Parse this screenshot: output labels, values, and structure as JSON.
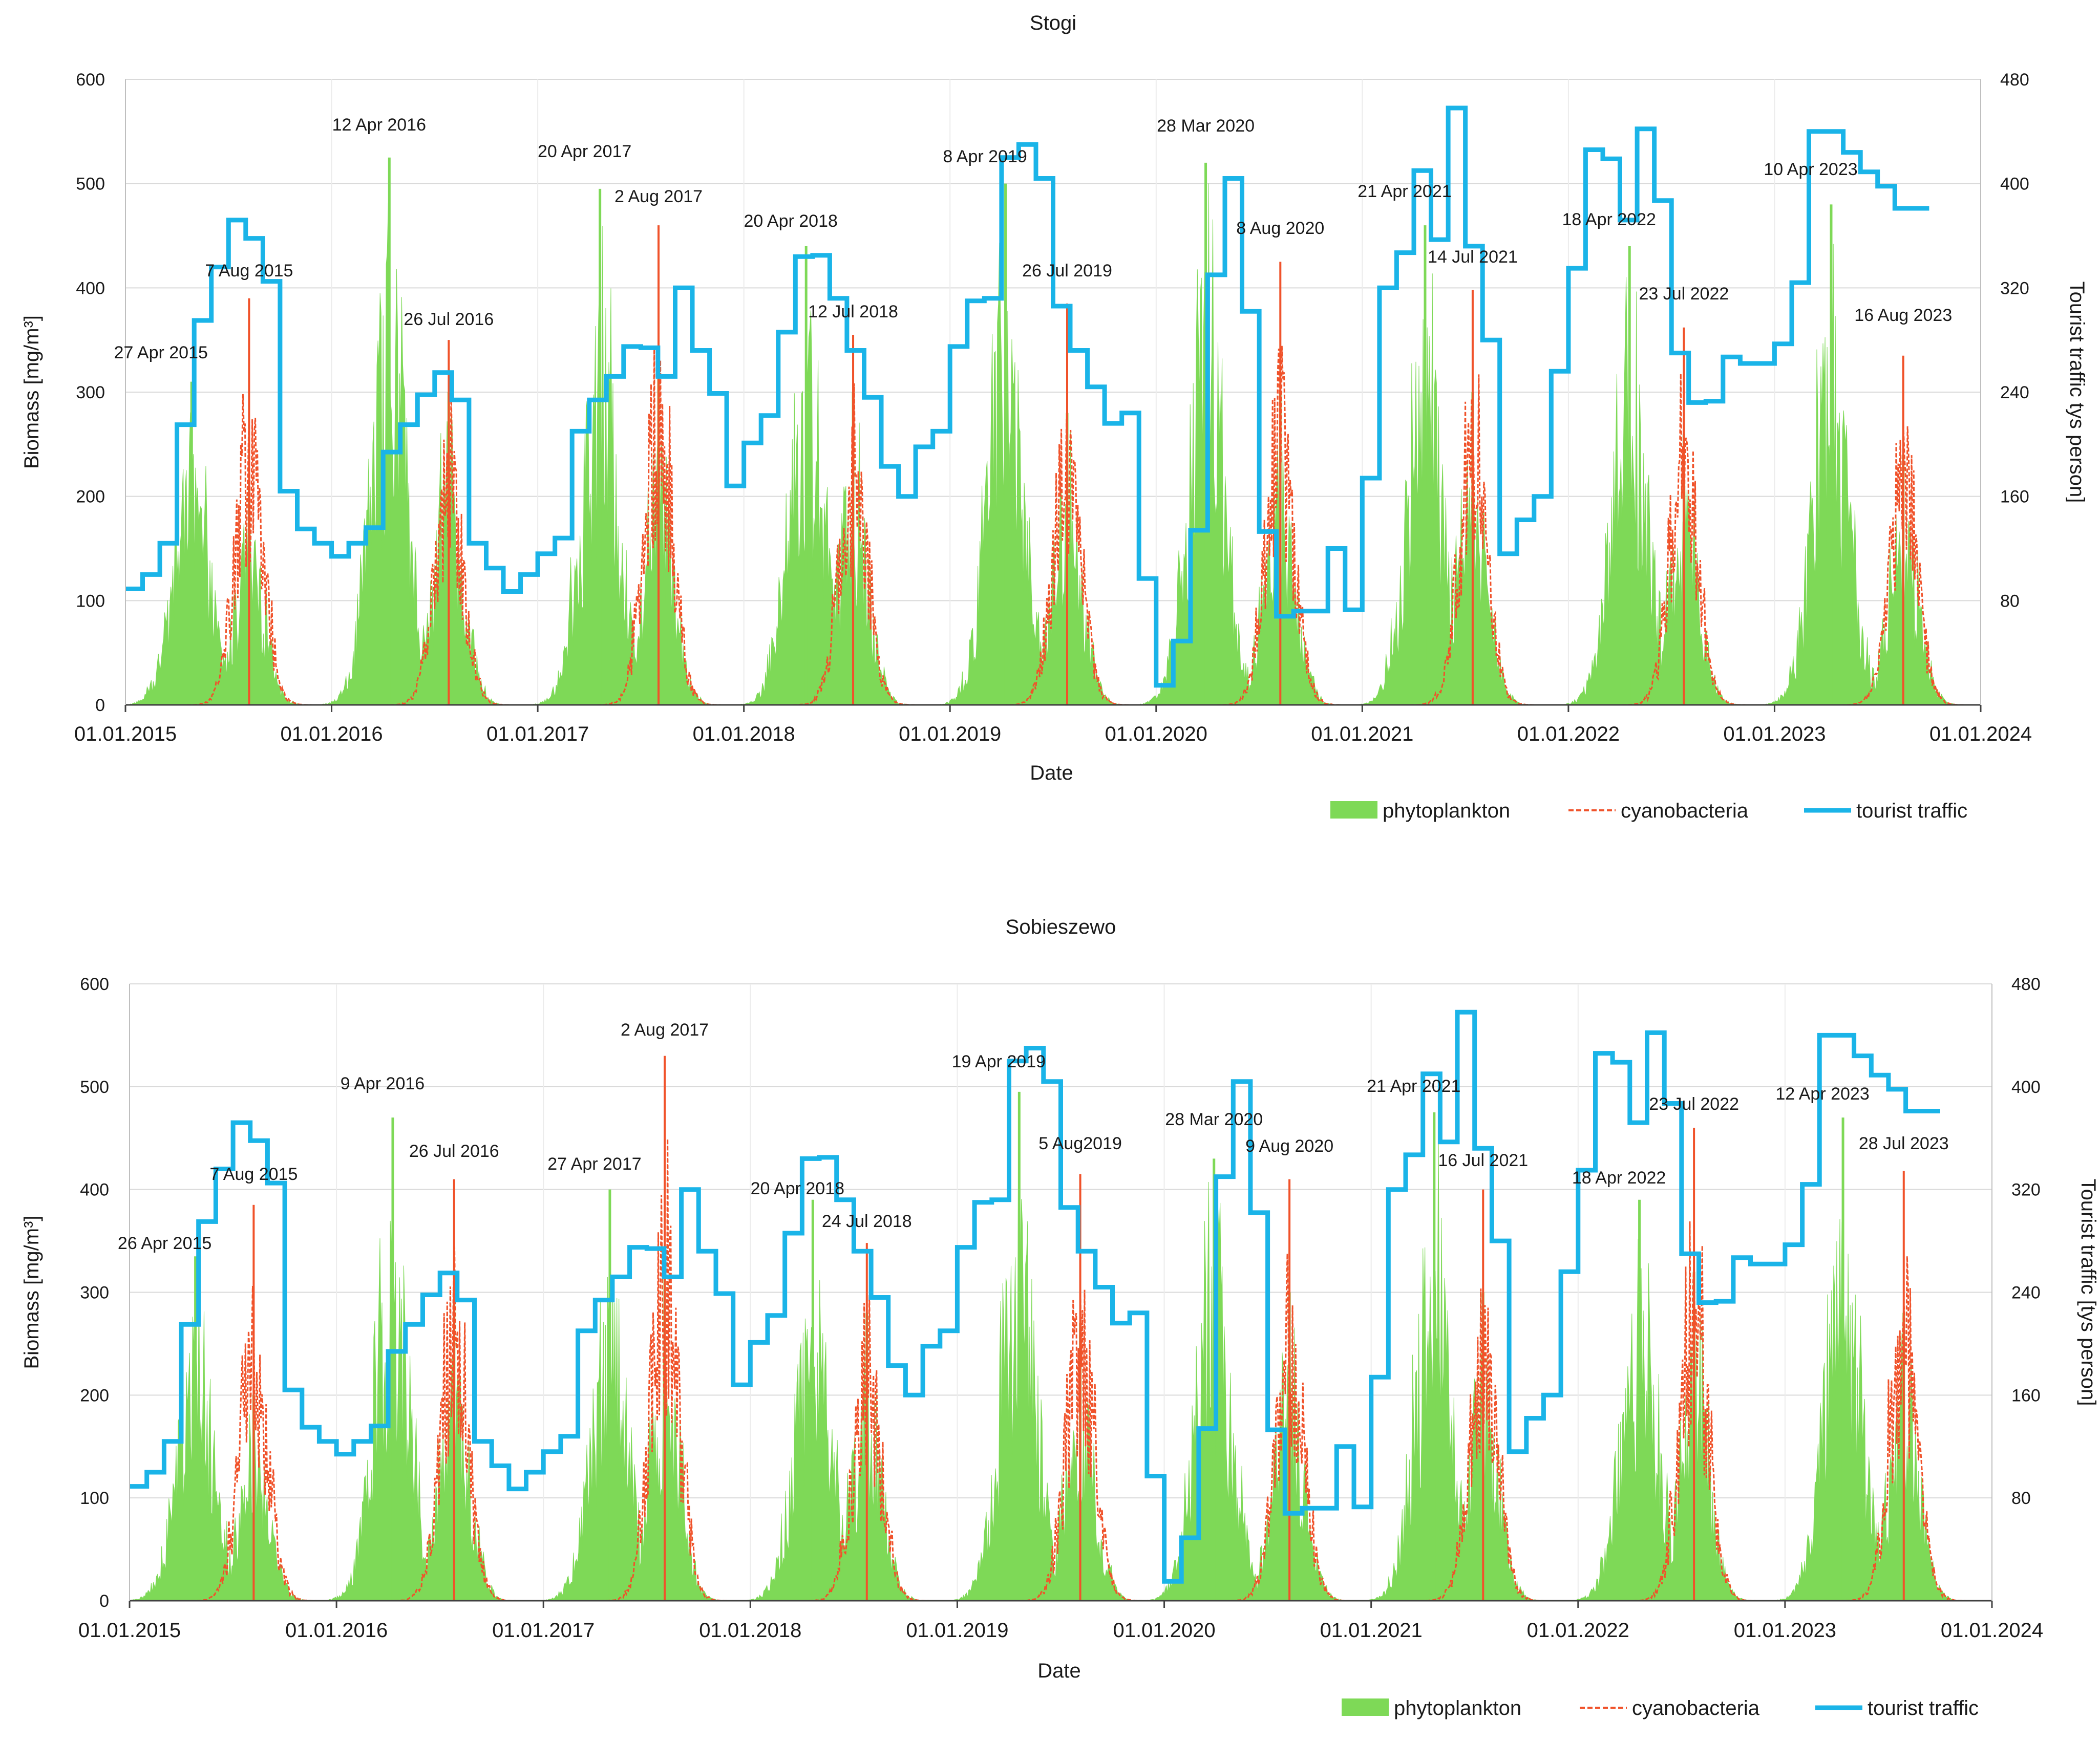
{
  "chart_data": [
    {
      "type": "area",
      "title": "Stogi",
      "xlabel": "Date",
      "ylabel": "Biomass  [mg/m³]",
      "y2label": "Tourist traffic  tys person]",
      "ylim": [
        0,
        600
      ],
      "y2lim": [
        0,
        480
      ],
      "y_ticks": [
        "0",
        "100",
        "200",
        "300",
        "400",
        "500",
        "600"
      ],
      "y2_ticks": [
        "80",
        "160",
        "240",
        "320",
        "400",
        "480"
      ],
      "x_ticks": [
        "01.01.2015",
        "01.01.2016",
        "01.01.2017",
        "01.01.2018",
        "01.01.2019",
        "01.01.2020",
        "01.01.2021",
        "01.01.2022",
        "01.01.2023",
        "01.01.2024"
      ],
      "grid": "horizontal",
      "legend": "bottom-right",
      "series": [
        {
          "name": "phytoplankton",
          "kind": "area",
          "color": "#7ED957",
          "peaks": [
            {
              "date": "2015-04-27",
              "value": 310
            },
            {
              "date": "2015-08-07",
              "value": 210
            },
            {
              "date": "2016-04-12",
              "value": 525
            },
            {
              "date": "2016-07-26",
              "value": 300
            },
            {
              "date": "2017-04-20",
              "value": 495
            },
            {
              "date": "2017-08-02",
              "value": 330
            },
            {
              "date": "2018-04-20",
              "value": 440
            },
            {
              "date": "2018-07-12",
              "value": 300
            },
            {
              "date": "2019-04-08",
              "value": 500
            },
            {
              "date": "2019-07-26",
              "value": 280
            },
            {
              "date": "2020-03-28",
              "value": 520
            },
            {
              "date": "2020-08-08",
              "value": 300
            },
            {
              "date": "2021-04-21",
              "value": 460
            },
            {
              "date": "2021-07-14",
              "value": 300
            },
            {
              "date": "2022-04-18",
              "value": 440
            },
            {
              "date": "2022-07-23",
              "value": 260
            },
            {
              "date": "2023-04-10",
              "value": 480
            },
            {
              "date": "2023-08-16",
              "value": 240
            }
          ]
        },
        {
          "name": "cyanobacteria",
          "kind": "dashed-line",
          "color": "#F0522A",
          "peaks": [
            {
              "date": "2015-08-07",
              "value": 390
            },
            {
              "date": "2016-07-26",
              "value": 350
            },
            {
              "date": "2017-08-02",
              "value": 460
            },
            {
              "date": "2018-07-12",
              "value": 355
            },
            {
              "date": "2019-07-26",
              "value": 385
            },
            {
              "date": "2020-08-08",
              "value": 425
            },
            {
              "date": "2021-07-14",
              "value": 398
            },
            {
              "date": "2022-07-23",
              "value": 362
            },
            {
              "date": "2023-08-16",
              "value": 335
            }
          ]
        },
        {
          "name": "tourist traffic",
          "kind": "step",
          "axis": "right",
          "color": "#1AB4E8",
          "monthly": [
            89,
            100,
            124,
            215,
            295,
            336,
            372,
            358,
            325,
            164,
            135,
            124,
            114,
            124,
            136,
            194,
            215,
            238,
            255,
            234,
            124,
            105,
            87,
            100,
            116,
            128,
            210,
            234,
            252,
            275,
            274,
            252,
            320,
            272,
            239,
            168,
            201,
            222,
            286,
            344,
            345,
            312,
            272,
            236,
            183,
            160,
            198,
            210,
            275,
            310,
            312,
            420,
            430,
            404,
            306,
            272,
            244,
            216,
            224,
            97,
            15,
            49,
            134,
            330,
            404,
            302,
            133,
            68,
            72,
            72,
            120,
            73,
            174,
            320,
            347,
            410,
            357,
            458,
            352,
            280,
            116,
            142,
            160,
            256,
            335,
            426,
            419,
            372,
            442,
            387,
            270,
            232,
            233,
            267,
            262,
            262,
            277,
            324,
            440,
            440,
            424,
            409,
            398,
            381,
            381
          ]
        }
      ],
      "annotations": [
        "27 Apr 2015",
        "7 Aug 2015",
        "12 Apr 2016",
        "26 Jul 2016",
        "20 Apr 2017",
        "2 Aug 2017",
        "20 Apr 2018",
        "12 Jul 2018",
        "8 Apr 2019",
        "26 Jul 2019",
        "28 Mar 2020",
        "8 Aug 2020",
        "21 Apr 2021",
        "14 Jul 2021",
        "18 Apr 2022",
        "23 Jul 2022",
        "10 Apr 2023",
        "16 Aug 2023"
      ]
    },
    {
      "type": "area",
      "title": "Sobieszewo",
      "xlabel": "Date",
      "ylabel": "Biomass  [mg/m³]",
      "y2label": "Tourist traffic [tys person]",
      "ylim": [
        0,
        600
      ],
      "y2lim": [
        0,
        480
      ],
      "y_ticks": [
        "0",
        "100",
        "200",
        "300",
        "400",
        "500",
        "600"
      ],
      "y2_ticks": [
        "80",
        "160",
        "240",
        "320",
        "400",
        "480"
      ],
      "x_ticks": [
        "01.01.2015",
        "01.01.2016",
        "01.01.2017",
        "01.01.2018",
        "01.01.2019",
        "01.01.2020",
        "01.01.2021",
        "01.01.2022",
        "01.01.2023",
        "01.01.2024"
      ],
      "grid": "horizontal",
      "legend": "bottom-right",
      "series": [
        {
          "name": "phytoplankton",
          "kind": "area",
          "color": "#7ED957",
          "peaks": [
            {
              "date": "2015-04-26",
              "value": 335
            },
            {
              "date": "2015-08-07",
              "value": 200
            },
            {
              "date": "2016-04-09",
              "value": 470
            },
            {
              "date": "2016-07-26",
              "value": 290
            },
            {
              "date": "2017-04-27",
              "value": 400
            },
            {
              "date": "2017-08-02",
              "value": 320
            },
            {
              "date": "2018-04-20",
              "value": 390
            },
            {
              "date": "2018-07-24",
              "value": 280
            },
            {
              "date": "2019-04-19",
              "value": 495
            },
            {
              "date": "2019-08-05",
              "value": 270
            },
            {
              "date": "2020-03-28",
              "value": 430
            },
            {
              "date": "2020-08-09",
              "value": 300
            },
            {
              "date": "2021-04-21",
              "value": 475
            },
            {
              "date": "2021-07-16",
              "value": 300
            },
            {
              "date": "2022-04-18",
              "value": 390
            },
            {
              "date": "2022-07-23",
              "value": 320
            },
            {
              "date": "2023-04-12",
              "value": 470
            },
            {
              "date": "2023-07-28",
              "value": 280
            }
          ]
        },
        {
          "name": "cyanobacteria",
          "kind": "dashed-line",
          "color": "#F0522A",
          "peaks": [
            {
              "date": "2015-08-07",
              "value": 385
            },
            {
              "date": "2016-07-26",
              "value": 410
            },
            {
              "date": "2017-08-02",
              "value": 530
            },
            {
              "date": "2018-07-24",
              "value": 348
            },
            {
              "date": "2019-08-05",
              "value": 415
            },
            {
              "date": "2020-08-09",
              "value": 410
            },
            {
              "date": "2021-07-16",
              "value": 400
            },
            {
              "date": "2022-07-23",
              "value": 460
            },
            {
              "date": "2023-07-28",
              "value": 418
            }
          ]
        },
        {
          "name": "tourist traffic",
          "kind": "step",
          "axis": "right",
          "color": "#1AB4E8",
          "monthly": [
            89,
            100,
            124,
            215,
            295,
            336,
            372,
            358,
            325,
            164,
            135,
            124,
            114,
            124,
            136,
            194,
            215,
            238,
            255,
            234,
            124,
            105,
            87,
            100,
            116,
            128,
            210,
            234,
            252,
            275,
            274,
            252,
            320,
            272,
            239,
            168,
            201,
            222,
            286,
            344,
            345,
            312,
            272,
            236,
            183,
            160,
            198,
            210,
            275,
            310,
            312,
            420,
            430,
            404,
            306,
            272,
            244,
            216,
            224,
            97,
            15,
            49,
            134,
            330,
            404,
            302,
            133,
            68,
            72,
            72,
            120,
            73,
            174,
            320,
            347,
            410,
            357,
            458,
            352,
            280,
            116,
            142,
            160,
            256,
            335,
            426,
            419,
            372,
            442,
            387,
            270,
            232,
            233,
            267,
            262,
            262,
            277,
            324,
            440,
            440,
            424,
            409,
            398,
            381,
            381
          ]
        }
      ],
      "annotations": [
        "26 Apr 2015",
        "7 Aug 2015",
        "9 Apr 2016",
        "26 Jul 2016",
        "27 Apr 2017",
        "2 Aug 2017",
        "20 Apr 2018",
        "24 Jul 2018",
        "19 Apr 2019",
        "5 Aug2019",
        "28 Mar 2020",
        "9 Aug 2020",
        "21 Apr 2021",
        "16 Jul 2021",
        "18 Apr 2022",
        "23 Jul 2022",
        "12 Apr 2023",
        "28 Jul 2023"
      ]
    }
  ]
}
